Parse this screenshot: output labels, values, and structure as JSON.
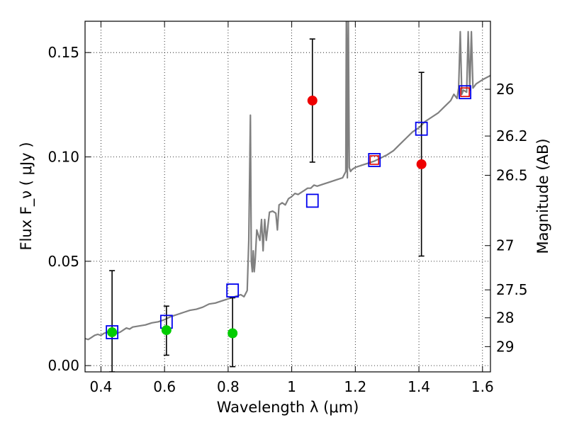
{
  "chart_data": {
    "type": "scatter",
    "xlabel": "Wavelength  λ (μm)",
    "ylabel": "Flux  F_ν  ( μJy )",
    "ylabel_right": "Magnitude (AB)",
    "xlim": [
      0.35,
      1.625
    ],
    "ylim": [
      -0.003,
      0.165
    ],
    "grid": true,
    "colors": {
      "spectrum": "#808080",
      "model_box": "#0000ee",
      "model_box_red": "#dd0000",
      "detection": "#ee0000",
      "upper": "#00cc00",
      "errorbar": "#000000"
    },
    "x_ticks": [
      {
        "value": 0.4,
        "label": "0.4"
      },
      {
        "value": 0.6,
        "label": "0.6"
      },
      {
        "value": 0.8,
        "label": "0.8"
      },
      {
        "value": 1.0,
        "label": "1"
      },
      {
        "value": 1.2,
        "label": "1.2"
      },
      {
        "value": 1.4,
        "label": "1.4"
      },
      {
        "value": 1.6,
        "label": "1.6"
      }
    ],
    "y_ticks": [
      {
        "value": 0.0,
        "label": "0.00"
      },
      {
        "value": 0.05,
        "label": "0.05"
      },
      {
        "value": 0.1,
        "label": "0.10"
      },
      {
        "value": 0.15,
        "label": "0.15"
      }
    ],
    "mag_ticks": [
      {
        "value": 0.1324,
        "label": "26"
      },
      {
        "value": 0.11,
        "label": "26.2"
      },
      {
        "value": 0.0912,
        "label": "26.5"
      },
      {
        "value": 0.0575,
        "label": "27"
      },
      {
        "value": 0.0363,
        "label": "27.5"
      },
      {
        "value": 0.0229,
        "label": "28"
      },
      {
        "value": 0.0091,
        "label": "29"
      }
    ],
    "model_points": [
      {
        "x": 0.435,
        "y": 0.016
      },
      {
        "x": 0.606,
        "y": 0.021
      },
      {
        "x": 0.814,
        "y": 0.036
      },
      {
        "x": 1.065,
        "y": 0.079
      },
      {
        "x": 1.26,
        "y": 0.0985
      },
      {
        "x": 1.408,
        "y": 0.1135
      },
      {
        "x": 1.545,
        "y": 0.131
      }
    ],
    "detections": [
      {
        "x": 1.065,
        "y": 0.127,
        "err_low": 0.0975,
        "err_high": 0.1565
      },
      {
        "x": 1.26,
        "y": 0.0985
      },
      {
        "x": 1.408,
        "y": 0.0965,
        "err_low": 0.0525,
        "err_high": 0.1405
      },
      {
        "x": 1.545,
        "y": 0.131
      }
    ],
    "nondetections": [
      {
        "x": 0.435,
        "y": 0.016,
        "err_low": -0.003,
        "err_high": 0.0455
      },
      {
        "x": 0.606,
        "y": 0.017,
        "err_low": 0.005,
        "err_high": 0.0285
      },
      {
        "x": 0.814,
        "y": 0.0155,
        "err_low": -0.0005,
        "err_high": 0.0325
      }
    ],
    "spectrum": {
      "x": [
        0.35,
        0.36,
        0.37,
        0.38,
        0.39,
        0.4,
        0.41,
        0.42,
        0.43,
        0.44,
        0.45,
        0.46,
        0.47,
        0.48,
        0.49,
        0.5,
        0.52,
        0.54,
        0.56,
        0.58,
        0.6,
        0.62,
        0.64,
        0.66,
        0.68,
        0.7,
        0.72,
        0.74,
        0.76,
        0.78,
        0.8,
        0.82,
        0.84,
        0.85,
        0.86,
        0.865,
        0.87,
        0.873,
        0.876,
        0.879,
        0.882,
        0.885,
        0.89,
        0.9,
        0.905,
        0.91,
        0.915,
        0.92,
        0.93,
        0.94,
        0.95,
        0.955,
        0.96,
        0.97,
        0.98,
        0.99,
        1.0,
        1.01,
        1.02,
        1.03,
        1.04,
        1.05,
        1.06,
        1.07,
        1.08,
        1.1,
        1.12,
        1.14,
        1.16,
        1.17,
        1.172,
        1.175,
        1.178,
        1.181,
        1.185,
        1.19,
        1.2,
        1.22,
        1.24,
        1.26,
        1.28,
        1.3,
        1.32,
        1.34,
        1.36,
        1.38,
        1.4,
        1.42,
        1.44,
        1.46,
        1.48,
        1.5,
        1.51,
        1.52,
        1.525,
        1.53,
        1.535,
        1.54,
        1.55,
        1.555,
        1.56,
        1.565,
        1.57,
        1.58,
        1.6,
        1.625
      ],
      "y": [
        0.013,
        0.0125,
        0.0135,
        0.0145,
        0.015,
        0.0145,
        0.0155,
        0.016,
        0.0165,
        0.016,
        0.0155,
        0.016,
        0.017,
        0.018,
        0.0175,
        0.0185,
        0.019,
        0.0195,
        0.0205,
        0.021,
        0.022,
        0.0235,
        0.0245,
        0.0255,
        0.0265,
        0.027,
        0.028,
        0.0295,
        0.03,
        0.031,
        0.032,
        0.033,
        0.034,
        0.033,
        0.036,
        0.06,
        0.12,
        0.05,
        0.045,
        0.055,
        0.045,
        0.05,
        0.065,
        0.06,
        0.07,
        0.055,
        0.07,
        0.06,
        0.0735,
        0.074,
        0.073,
        0.065,
        0.077,
        0.078,
        0.077,
        0.08,
        0.081,
        0.0825,
        0.082,
        0.083,
        0.084,
        0.085,
        0.085,
        0.0865,
        0.086,
        0.087,
        0.088,
        0.089,
        0.09,
        0.093,
        0.18,
        0.09,
        0.165,
        0.095,
        0.093,
        0.094,
        0.095,
        0.096,
        0.097,
        0.098,
        0.0995,
        0.101,
        0.103,
        0.106,
        0.109,
        0.112,
        0.114,
        0.117,
        0.119,
        0.121,
        0.124,
        0.127,
        0.13,
        0.128,
        0.133,
        0.16,
        0.13,
        0.132,
        0.131,
        0.16,
        0.132,
        0.16,
        0.133,
        0.135,
        0.137,
        0.139
      ]
    }
  }
}
